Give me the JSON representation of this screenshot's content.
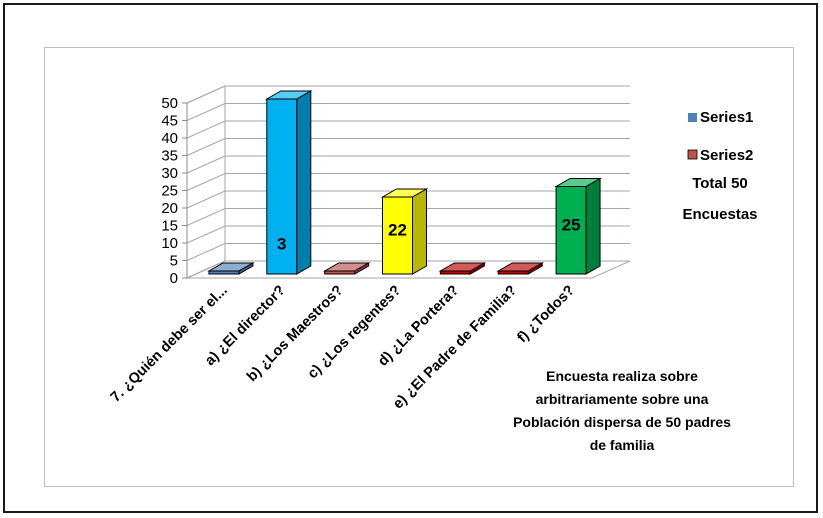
{
  "chart_data": {
    "type": "bar",
    "categories": [
      "7. ¿Quién debe ser  el...",
      "a) ¿El director?",
      "b) ¿Los Maestros?",
      "c) ¿Los regentes?",
      "d) ¿La Portera?",
      "e) ¿El Padre de Familia?",
      "f) ¿Todos?"
    ],
    "series": [
      {
        "name": "Series1",
        "values": [
          0,
          3,
          null,
          null,
          null,
          null,
          null
        ]
      },
      {
        "name": "Series2",
        "values": [
          null,
          50,
          0,
          22,
          0,
          0,
          25
        ]
      }
    ],
    "bar_colors": [
      "#4f81bd",
      "#00b0f0",
      "#c0504d",
      "#ffff00",
      "#c00000",
      "#c00000",
      "#00b050"
    ],
    "series_colors": {
      "Series1": "#4f81bd",
      "Series2": "#c0504d"
    },
    "data_labels": [
      {
        "category_index": 1,
        "text": "3"
      },
      {
        "category_index": 3,
        "text": "22"
      },
      {
        "category_index": 6,
        "text": "25"
      }
    ],
    "ylim": [
      0,
      50
    ],
    "yticks": [
      0,
      5,
      10,
      15,
      20,
      25,
      30,
      35,
      40,
      45,
      50
    ],
    "grid": true,
    "legend_position": "right",
    "legend_extra": [
      "Total 50",
      "Encuestas"
    ],
    "annotation": [
      "Encuesta realiza sobre",
      "arbitrariamente sobre una",
      "Población dispersa de 50 padres",
      "de familia"
    ]
  }
}
